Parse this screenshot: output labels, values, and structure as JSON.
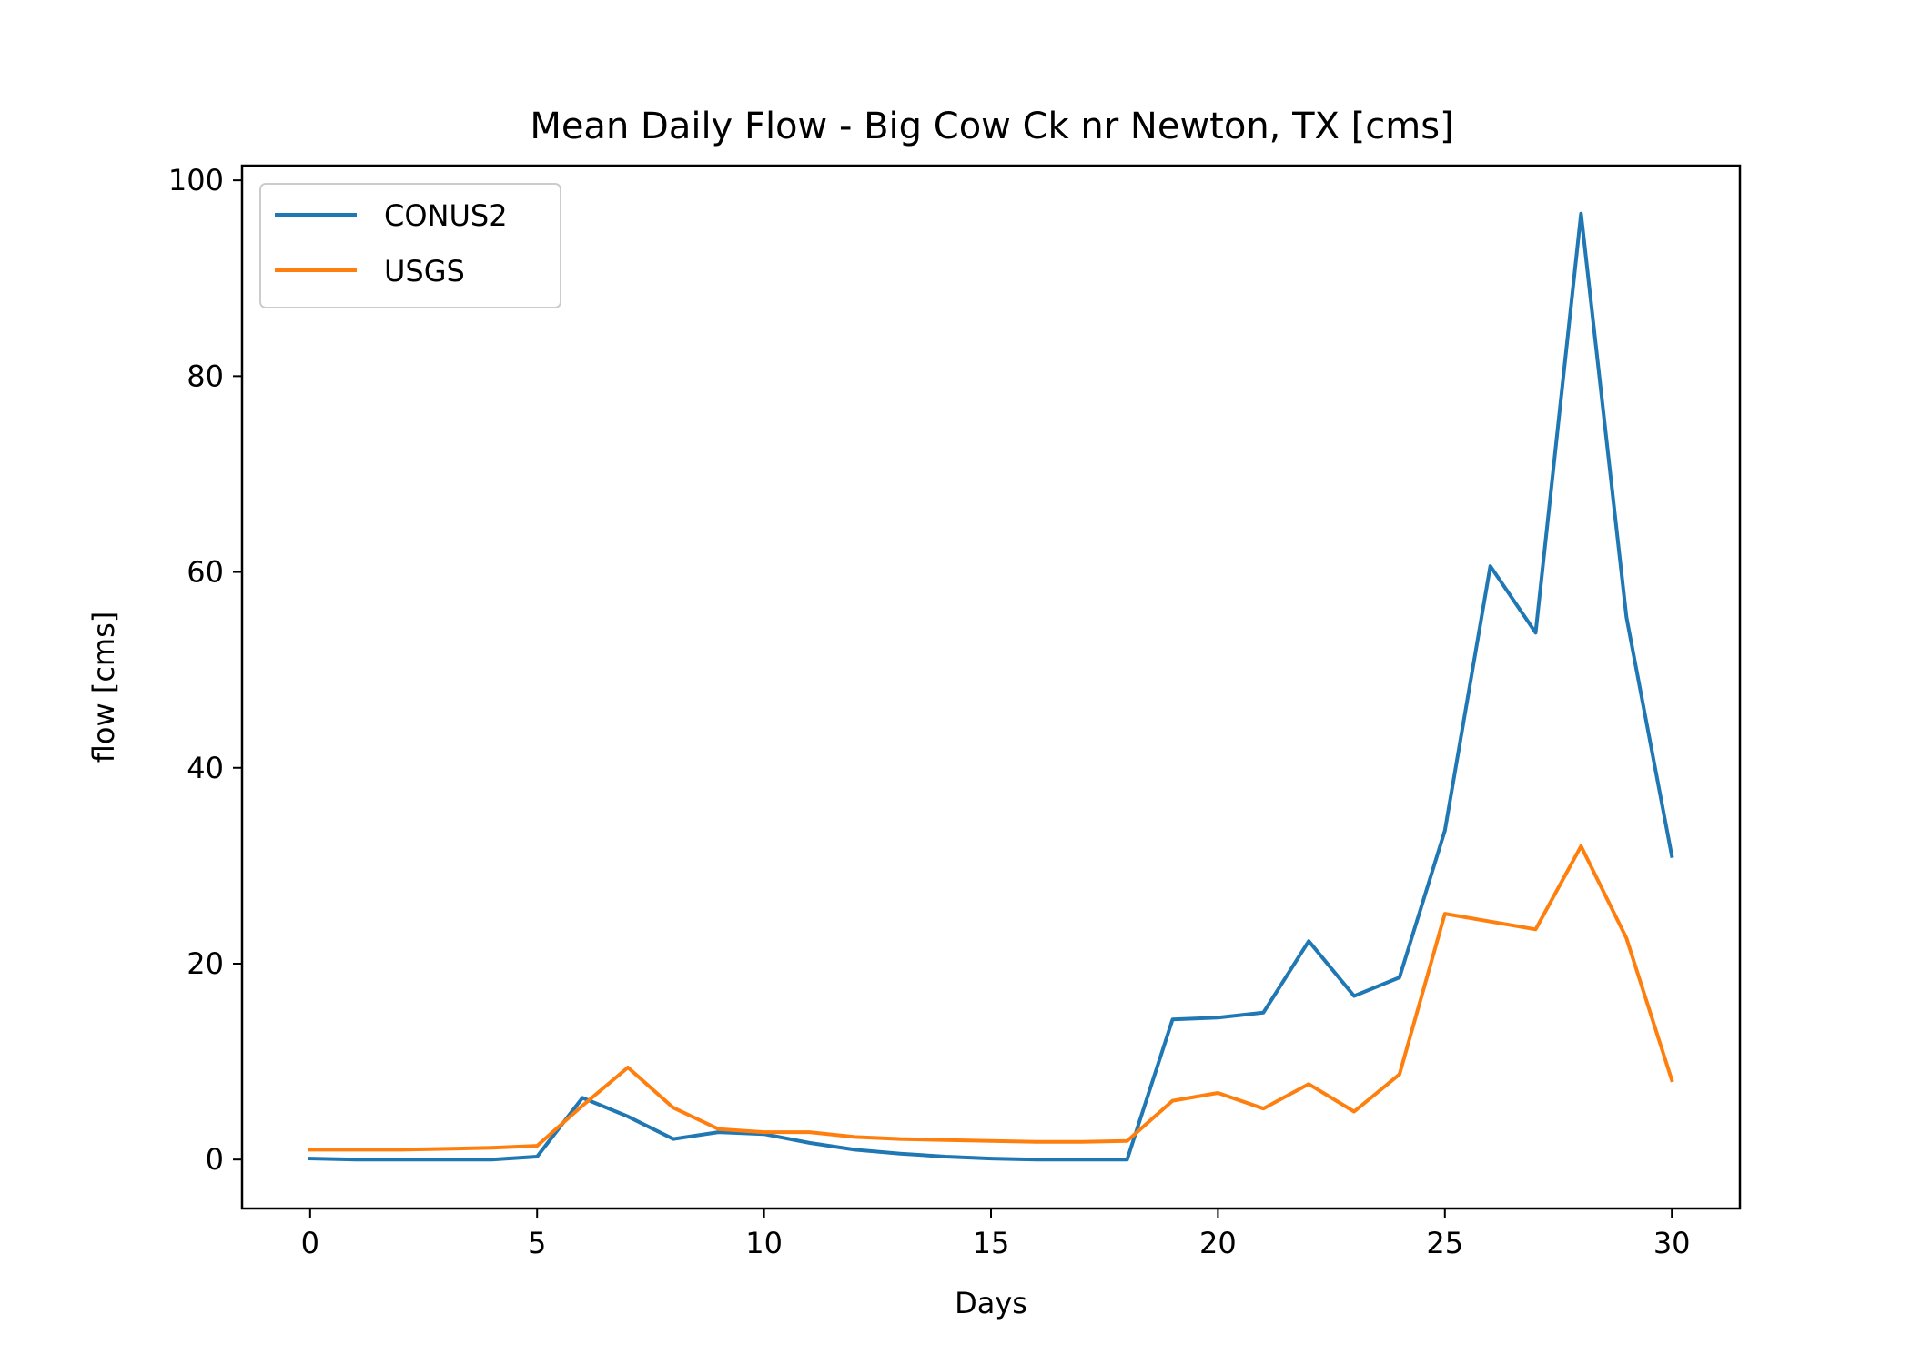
{
  "chart_data": {
    "type": "line",
    "title": "Mean Daily Flow - Big Cow Ck nr Newton, TX [cms]",
    "xlabel": "Days",
    "ylabel": "flow [cms]",
    "xlim": [
      -1.5,
      31.5
    ],
    "ylim": [
      -5,
      101.5
    ],
    "xticks": [
      0,
      5,
      10,
      15,
      20,
      25,
      30
    ],
    "yticks": [
      0,
      20,
      40,
      60,
      80,
      100
    ],
    "grid": false,
    "legend_position": "top-left",
    "x": [
      0,
      1,
      2,
      3,
      4,
      5,
      6,
      7,
      8,
      9,
      10,
      11,
      12,
      13,
      14,
      15,
      16,
      17,
      18,
      19,
      20,
      21,
      22,
      23,
      24,
      25,
      26,
      27,
      28,
      29,
      30
    ],
    "series": [
      {
        "name": "CONUS2",
        "color": "#1f77b4",
        "values": [
          0.1,
          0.0,
          0.0,
          0.0,
          0.0,
          0.3,
          6.3,
          4.4,
          2.1,
          2.8,
          2.6,
          1.7,
          1.0,
          0.6,
          0.3,
          0.1,
          0.0,
          0.0,
          0.0,
          14.3,
          14.5,
          15.0,
          22.3,
          16.7,
          18.6,
          33.6,
          60.6,
          53.8,
          96.6,
          55.4,
          31.0
        ]
      },
      {
        "name": "USGS",
        "color": "#ff7f0e",
        "values": [
          1.0,
          1.0,
          1.0,
          1.1,
          1.2,
          1.4,
          5.5,
          9.4,
          5.3,
          3.1,
          2.8,
          2.8,
          2.3,
          2.1,
          2.0,
          1.9,
          1.8,
          1.8,
          1.9,
          6.0,
          6.8,
          5.2,
          7.7,
          4.9,
          8.7,
          25.1,
          24.3,
          23.5,
          32.0,
          22.6,
          8.1
        ]
      }
    ]
  }
}
